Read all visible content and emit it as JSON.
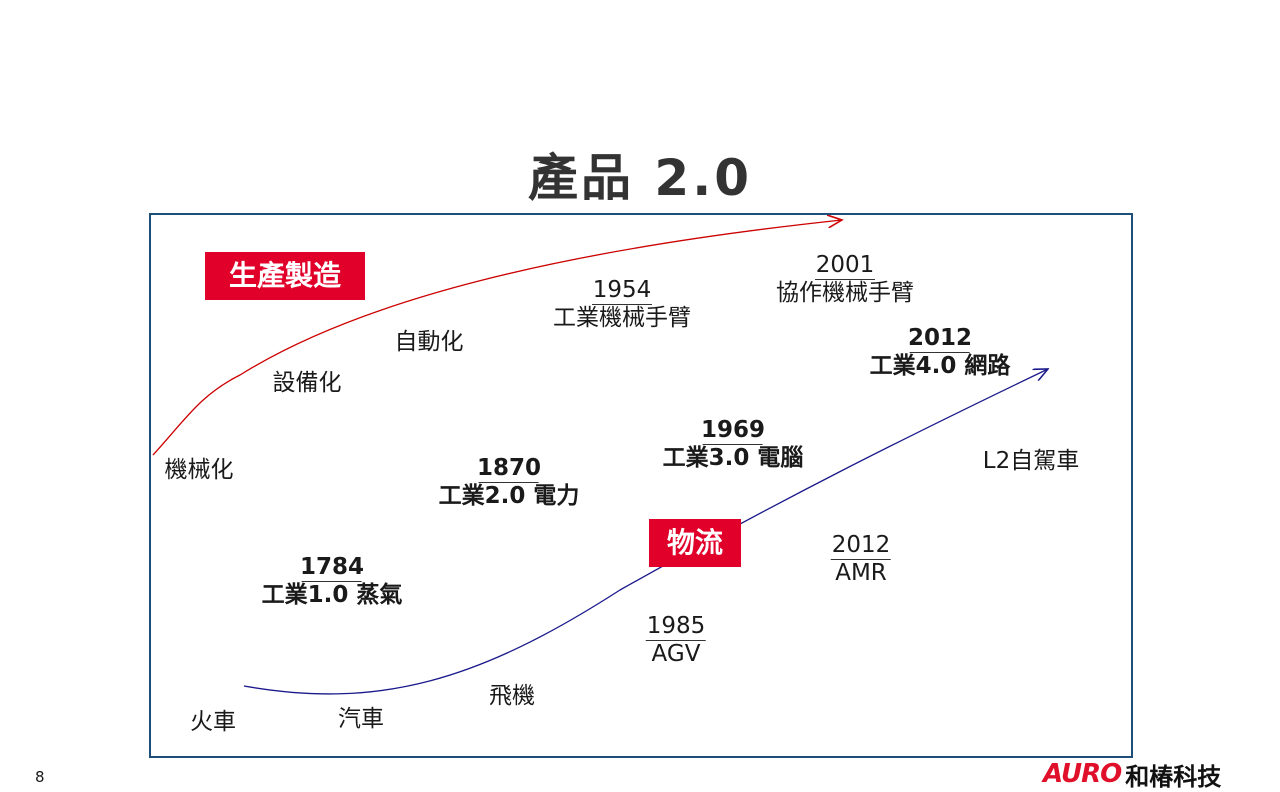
{
  "title": "產品 2.0",
  "page_number": "8",
  "logo": {
    "brand": "AURO",
    "company": "和椿科技"
  },
  "colors": {
    "accent": "#e0002a",
    "frame": "#1f4e79",
    "manufacturing_arrow": "#cc0000",
    "logistics_arrow": "#1a1a8c"
  },
  "tags": {
    "manufacturing": "生產製造",
    "logistics": "物流"
  },
  "manufacturing": {
    "stages": [
      "機械化",
      "設備化",
      "自動化"
    ],
    "milestones": [
      {
        "year": "1954",
        "label": "工業機械手臂"
      },
      {
        "year": "2001",
        "label": "協作機械手臂"
      }
    ]
  },
  "industry": [
    {
      "year": "1784",
      "label": "工業1.0 蒸氣"
    },
    {
      "year": "1870",
      "label": "工業2.0 電力"
    },
    {
      "year": "1969",
      "label": "工業3.0 電腦"
    },
    {
      "year": "2012",
      "label": "工業4.0 網路"
    }
  ],
  "logistics": {
    "stages": [
      "火車",
      "汽車",
      "飛機",
      "L2自駕車"
    ],
    "milestones": [
      {
        "year": "1985",
        "label": "AGV"
      },
      {
        "year": "2012",
        "label": "AMR"
      }
    ]
  }
}
